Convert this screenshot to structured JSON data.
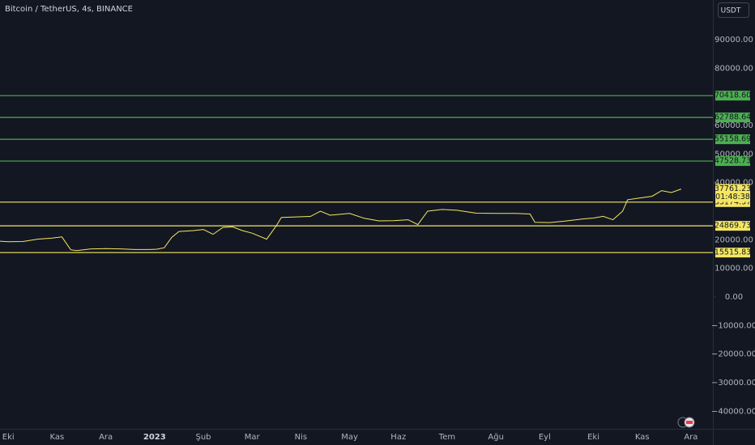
{
  "chart_data": {
    "type": "line",
    "title": "Bitcoin / TetherUS, 4s, BINANCE",
    "currency": "USDT",
    "categories": [
      "Eki",
      "Kas",
      "Ara",
      "2023",
      "Şub",
      "Mar",
      "Nis",
      "May",
      "Haz",
      "Tem",
      "Ağu",
      "Eyl",
      "Eki",
      "Kas",
      "Ara"
    ],
    "xlim": [
      -0.17,
      14.45
    ],
    "x": [
      -0.17,
      0,
      0.3,
      0.6,
      0.9,
      1.1,
      1.28,
      1.4,
      1.7,
      2,
      2.3,
      2.6,
      2.9,
      3.05,
      3.2,
      3.35,
      3.5,
      3.8,
      4,
      4.2,
      4.4,
      4.6,
      4.8,
      5,
      5.3,
      5.5,
      5.6,
      5.9,
      6.2,
      6.4,
      6.6,
      7,
      7.3,
      7.6,
      7.9,
      8.2,
      8.4,
      8.6,
      8.9,
      9.2,
      9.6,
      10,
      10.4,
      10.7,
      10.8,
      11.1,
      11.4,
      11.8,
      12,
      12.2,
      12.4,
      12.6,
      12.7,
      12.9,
      13.2,
      13.4,
      13.6,
      13.8
    ],
    "values": [
      19500,
      19300,
      19400,
      20200,
      20600,
      21000,
      16500,
      16200,
      16800,
      16900,
      16800,
      16600,
      16600,
      16700,
      17200,
      20800,
      22900,
      23200,
      23600,
      21900,
      24300,
      24500,
      23200,
      22300,
      20200,
      25000,
      27800,
      28000,
      28200,
      30000,
      28600,
      29200,
      27500,
      26600,
      26700,
      27000,
      25300,
      30000,
      30600,
      30300,
      29300,
      29200,
      29200,
      29000,
      26100,
      26000,
      26500,
      27300,
      27600,
      28200,
      27000,
      30000,
      34000,
      34500,
      35200,
      37200,
      36500,
      37761.23
    ],
    "color": "#f5e663",
    "countdown": "01:48:38",
    "ylim": [
      -46130,
      103870
    ],
    "yticks": [
      {
        "value": 90000,
        "label": "90000.00"
      },
      {
        "value": 80000,
        "label": "80000.00"
      },
      {
        "value": 60000,
        "label": "60000.00"
      },
      {
        "value": 50000,
        "label": "50000.00"
      },
      {
        "value": 40000,
        "label": "40000.00"
      },
      {
        "value": 20000,
        "label": "20000.00"
      },
      {
        "value": 10000,
        "label": "10000.00"
      },
      {
        "value": 0,
        "label": "0.00"
      },
      {
        "value": -10000,
        "label": "−10000.00"
      },
      {
        "value": -20000,
        "label": "−20000.00"
      },
      {
        "value": -30000,
        "label": "−30000.00"
      },
      {
        "value": -40000,
        "label": "−40000.00"
      }
    ],
    "levels": [
      {
        "value": 70418.6,
        "label": "70418.60",
        "color": "#4caf50"
      },
      {
        "value": 62788.64,
        "color": "#4caf50"
      },
      {
        "value": 55158.69,
        "color": "#4caf50"
      },
      {
        "value": 47528.73,
        "color": "#4caf50"
      },
      {
        "value": 33174.37,
        "color": "#f5e663"
      },
      {
        "value": 24869.73,
        "color": "#f5e663"
      },
      {
        "value": 15515.83,
        "color": "#f5e663"
      }
    ]
  }
}
